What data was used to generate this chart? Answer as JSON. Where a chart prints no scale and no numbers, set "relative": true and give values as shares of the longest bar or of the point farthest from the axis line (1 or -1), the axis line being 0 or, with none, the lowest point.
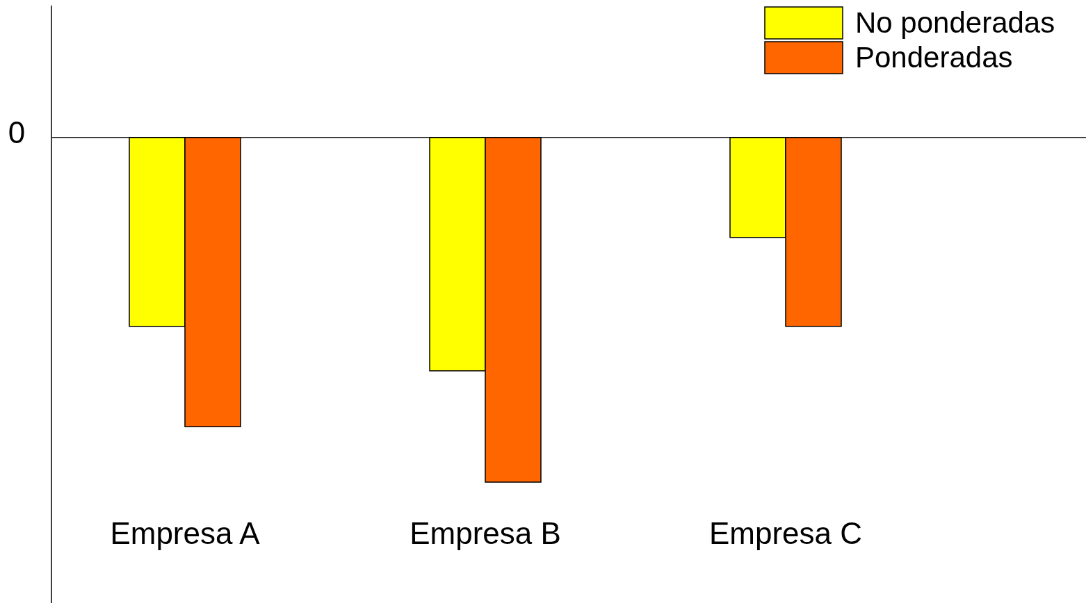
{
  "chart_data": {
    "type": "bar",
    "relative": true,
    "categories": [
      "Empresa A",
      "Empresa B",
      "Empresa C"
    ],
    "series": [
      {
        "name": "No ponderadas",
        "color": "#ffff00",
        "values": [
          -0.548,
          -0.677,
          -0.29
        ]
      },
      {
        "name": "Ponderadas",
        "color": "#ff6600",
        "values": [
          -0.839,
          -1,
          -0.548
        ]
      }
    ],
    "annotations": [
      "0"
    ],
    "legend": "top right"
  }
}
